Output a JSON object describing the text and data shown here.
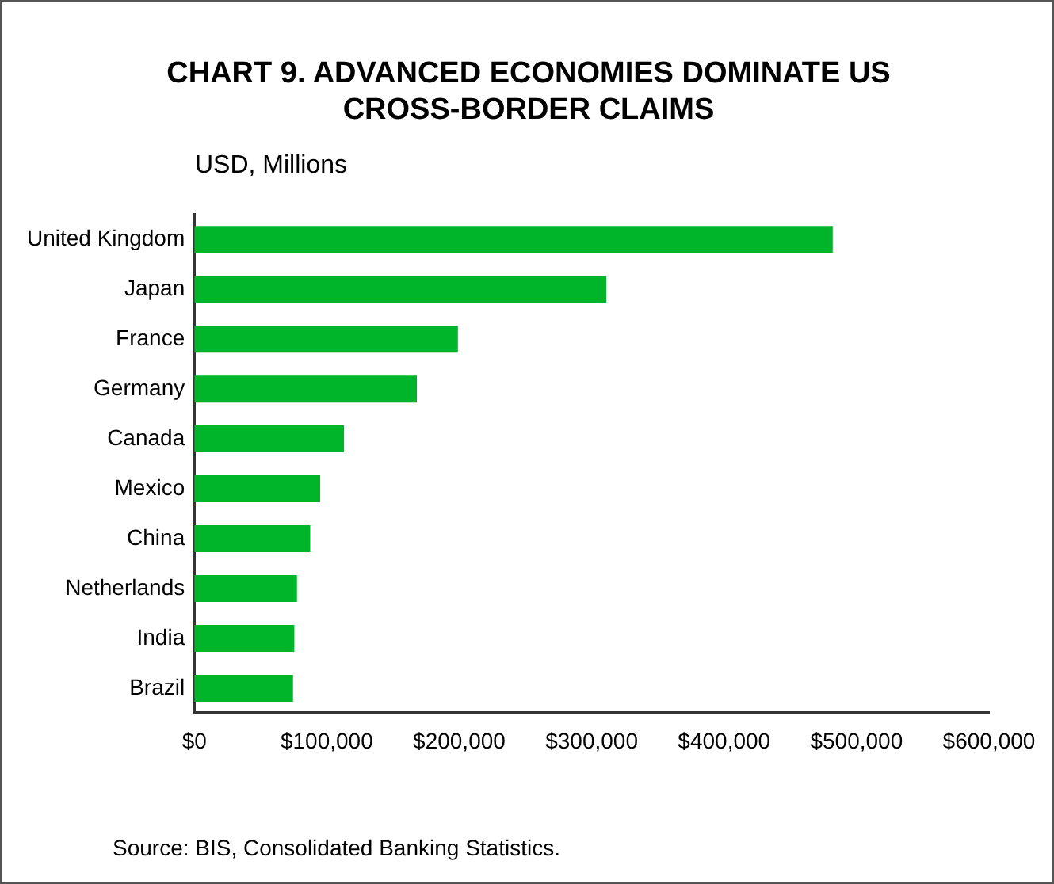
{
  "chart_data": {
    "type": "bar",
    "orientation": "horizontal",
    "title": "CHART 9. ADVANCED ECONOMIES DOMINATE US CROSS-BORDER CLAIMS",
    "xlabel": "USD, Millions",
    "categories": [
      "United Kingdom",
      "Japan",
      "France",
      "Germany",
      "Canada",
      "Mexico",
      "China",
      "Netherlands",
      "India",
      "Brazil"
    ],
    "values": [
      482000,
      311000,
      199000,
      168000,
      113000,
      95000,
      87500,
      77500,
      75500,
      74500
    ],
    "color": "#00b52a",
    "xlim": [
      0,
      600000
    ],
    "xticks": [
      {
        "value": 0,
        "label": "$0"
      },
      {
        "value": 100000,
        "label": "$100,000"
      },
      {
        "value": 200000,
        "label": "$200,000"
      },
      {
        "value": 300000,
        "label": "$300,000"
      },
      {
        "value": 400000,
        "label": "$400,000"
      },
      {
        "value": 500000,
        "label": "$500,000"
      },
      {
        "value": 600000,
        "label": "$600,000"
      }
    ],
    "grid": false,
    "legend": false,
    "annotations": [
      "Source: BIS, Consolidated Banking Statistics."
    ]
  }
}
